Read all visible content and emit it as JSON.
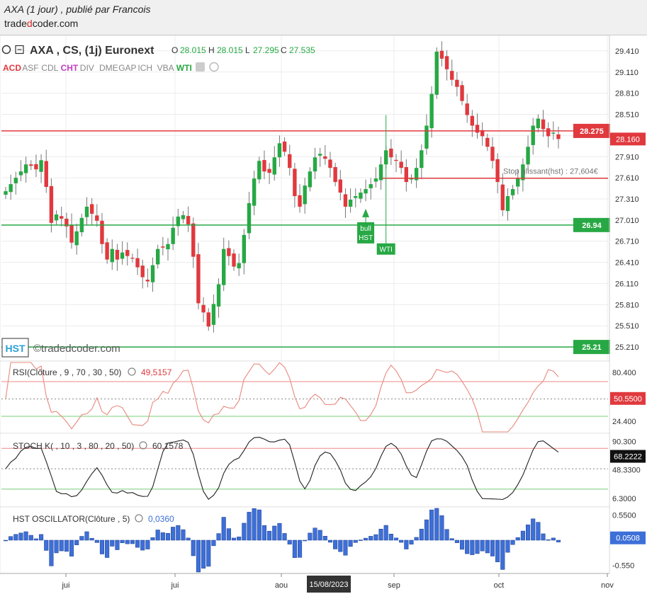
{
  "header": {
    "title": "AXA (1 jour) , publié par Francois",
    "site_pre": "trade",
    "site_mid": "d",
    "site_post": "coder.com"
  },
  "legend": {
    "instrument": "AXA , CS, (1j) Euronext",
    "o_label": "O",
    "o_value": "28.015",
    "h_label": "H",
    "h_value": "28.015",
    "l_label": "L",
    "l_value": "27.295",
    "c_label": "C",
    "c_value": "27.535",
    "indicators": [
      {
        "label": "ACD",
        "color": "#e0393e"
      },
      {
        "label": "ASF",
        "color": "#888888"
      },
      {
        "label": "CDL",
        "color": "#888888"
      },
      {
        "label": "CHT",
        "color": "#c040c0"
      },
      {
        "label": "DIV",
        "color": "#888888"
      },
      {
        "label": "DME",
        "color": "#888888"
      },
      {
        "label": "GAP",
        "color": "#888888"
      },
      {
        "label": "ICH",
        "color": "#888888"
      },
      {
        "label": "VBA",
        "color": "#888888"
      },
      {
        "label": "WTI",
        "color": "#27a844"
      }
    ]
  },
  "watermark": {
    "badge": "HST",
    "text": "©tradedcoder.com"
  },
  "stop_label": "Stop glissant(hst) : 27,604€",
  "markers": {
    "bull": "bull",
    "hst": "HST",
    "wti": "WTI"
  },
  "x_axis": {
    "labels": [
      "jui",
      "jui",
      "aou",
      "sep",
      "oct",
      "nov"
    ],
    "cursor_date": "15/08/2023"
  },
  "colors": {
    "up": "#27a844",
    "down": "#e0393e",
    "resistance": "#e0393e",
    "support": "#27a844",
    "hst_bar": "#3d6fd8"
  },
  "chart_data": [
    {
      "type": "candlestick",
      "title": "AXA , CS, (1j) Euronext",
      "ylim": [
        25.01,
        29.63
      ],
      "y_ticks": [
        29.41,
        29.11,
        28.81,
        28.51,
        28.21,
        27.91,
        27.61,
        27.31,
        27.01,
        26.71,
        26.41,
        26.11,
        25.81,
        25.51,
        25.21
      ],
      "y_tick_labels": [
        "29.410",
        "29.110",
        "28.810",
        "28.510",
        "28.210",
        "27.910",
        "27.610",
        "27.310",
        "27.010",
        "26.710",
        "26.410",
        "26.110",
        "25.810",
        "25.510",
        "25.210"
      ],
      "last_price": "28.160",
      "levels": [
        {
          "label": "28.275",
          "value": 28.275,
          "kind": "resistance"
        },
        {
          "label": "26.94",
          "value": 26.94,
          "kind": "support"
        },
        {
          "label": "25.21",
          "value": 25.21,
          "kind": "support"
        }
      ],
      "stop_line": {
        "value": 27.604,
        "start_index": 75
      },
      "closes": [
        27.42,
        27.52,
        27.61,
        27.7,
        27.8,
        27.78,
        27.73,
        27.86,
        27.48,
        26.97,
        27.09,
        27.03,
        26.92,
        26.69,
        26.85,
        27.04,
        27.2,
        27.1,
        27.0,
        26.67,
        26.45,
        26.6,
        26.45,
        26.55,
        26.5,
        26.47,
        26.34,
        26.2,
        26.14,
        26.37,
        26.6,
        26.62,
        26.67,
        26.9,
        27.06,
        27.08,
        26.95,
        26.49,
        25.83,
        25.7,
        25.5,
        25.82,
        26.1,
        26.6,
        26.5,
        26.35,
        26.4,
        26.8,
        27.25,
        27.6,
        27.85,
        27.7,
        27.68,
        27.9,
        28.1,
        27.98,
        27.75,
        27.35,
        27.2,
        27.5,
        27.7,
        27.9,
        27.95,
        27.88,
        27.75,
        27.55,
        27.4,
        27.2,
        27.3,
        27.35,
        27.4,
        27.45,
        27.52,
        27.6,
        27.8,
        28.0,
        27.9,
        27.85,
        27.75,
        27.55,
        27.6,
        27.75,
        28.0,
        28.35,
        28.8,
        29.4,
        29.3,
        29.15,
        29.0,
        28.9,
        28.7,
        28.5,
        28.35,
        28.25,
        28.2,
        28.05,
        27.85,
        27.55,
        27.15,
        27.35,
        27.45,
        27.6,
        27.8,
        28.05,
        28.35,
        28.45,
        28.3,
        28.2,
        28.25,
        28.16
      ],
      "rsi": {
        "label": "RSI(Clôture , 9 , 70 , 30 , 50)",
        "value": "49,5157",
        "badge": "50.5500",
        "upper": 70,
        "lower": 30,
        "mid": 50,
        "ylim": [
          12,
          92
        ],
        "y_ticks": [
          80.4,
          50.55,
          24.4
        ],
        "y_tick_labels": [
          "80.400",
          "50.5500",
          "24.400"
        ]
      },
      "stoch": {
        "label": "STOCH K( , 10 , 3 , 80 , 20 , 50)",
        "value": "60,1578",
        "badge": "68.2222",
        "upper": 80,
        "lower": 20,
        "mid": 50,
        "ylim": [
          -4,
          100
        ],
        "y_ticks": [
          90.3,
          68.2222,
          48.33,
          6.3
        ],
        "y_tick_labels": [
          "90.300",
          "68.2222",
          "48.3300",
          "6.3000"
        ]
      },
      "hst": {
        "label": "HST OSCILLATOR(Clôture , 5)",
        "value": "0,0360",
        "badge": "0.0508",
        "ylim": [
          -0.7,
          0.7
        ],
        "y_ticks": [
          0.55,
          0.0508,
          -0.55
        ],
        "y_tick_labels": [
          "0.5500",
          "0.0508",
          "-0.550"
        ]
      }
    }
  ]
}
